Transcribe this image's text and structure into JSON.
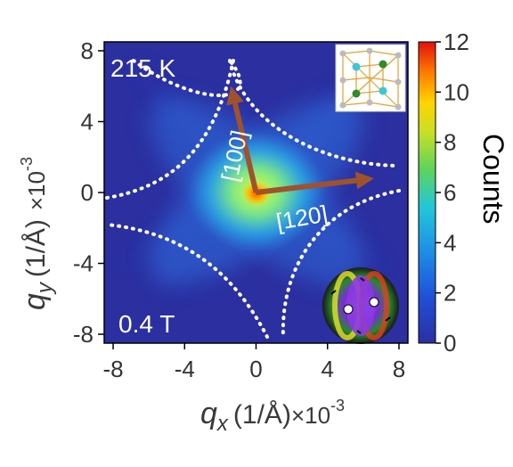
{
  "chart_data": {
    "type": "heatmap",
    "title": "",
    "xlabel": {
      "symbol": "q",
      "sub": "x",
      "unit": "(1/Å)",
      "scale": "×10",
      "exp": "-3"
    },
    "ylabel": {
      "symbol": "q",
      "sub": "y",
      "unit": "(1/Å)",
      "scale": "×10",
      "exp": "-3"
    },
    "xlim": [
      -8.5,
      8.5
    ],
    "ylim": [
      -8.5,
      8.5
    ],
    "x_ticks": [
      -8,
      -4,
      0,
      4,
      8
    ],
    "y_ticks": [
      -8,
      -4,
      0,
      4,
      8
    ],
    "x_tick_labels": [
      "-8",
      "-4",
      "0",
      "4",
      "8"
    ],
    "y_tick_labels": [
      "-8",
      "-4",
      "0",
      "4",
      "8"
    ],
    "colorbar": {
      "label": "Counts",
      "range": [
        0,
        12
      ],
      "ticks": [
        0,
        2,
        4,
        6,
        8,
        10,
        12
      ],
      "tick_labels": [
        "0",
        "2",
        "4",
        "6",
        "8",
        "10",
        "12"
      ],
      "colormap": "jet"
    },
    "intensity_profile": {
      "background_counts": 1.5,
      "peak_counts": 12,
      "peak_center": [
        0,
        0
      ],
      "shape": "four-pointed star elongated along diagonals"
    },
    "annotations": {
      "temperature": "215 K",
      "field": "0.4 T",
      "arrow_a_label": "[100]",
      "arrow_b_label": "[120]"
    },
    "arrows": [
      {
        "label": "[100]",
        "from": [
          0,
          0
        ],
        "to": [
          -1.4,
          6.0
        ]
      },
      {
        "label": "[120]",
        "from": [
          0,
          0
        ],
        "to": [
          6.6,
          0.8
        ]
      }
    ],
    "dotted_boundary": {
      "style": "white dotted",
      "shape": "astroid-like four-cusp curve"
    },
    "insets": [
      {
        "name": "crystal-structure",
        "position": "top-right"
      },
      {
        "name": "skyrmion",
        "position": "bottom-right"
      }
    ]
  },
  "colors": {
    "background": "#2b2fa0",
    "arrow": "#a0522d",
    "boundary": "#ffffff",
    "annotation_text": "#ffffff"
  }
}
